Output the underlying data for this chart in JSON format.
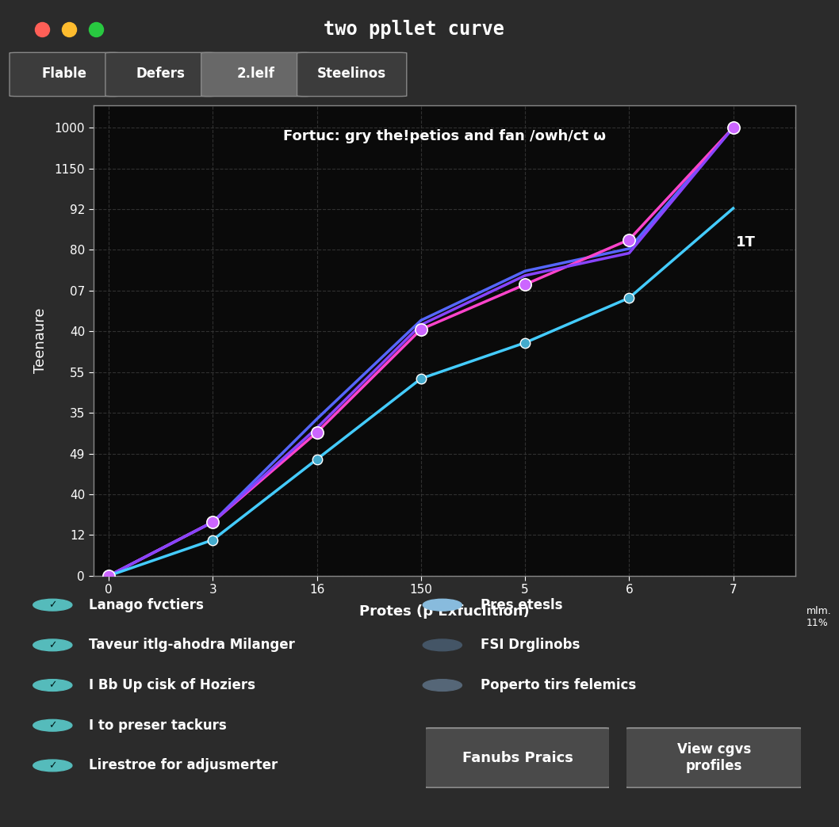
{
  "title": "two ppllet curve",
  "tab_labels": [
    "Flable",
    "Defers",
    "2.lelf",
    "Steelinos"
  ],
  "active_tab": 2,
  "chart_title": "Fortuc: gry the!petios and fan /owh/ct ω",
  "xlabel": "Protes (p Exfuclition)",
  "ylabel": "Teenaure",
  "x_tick_labels": [
    "0",
    "3",
    "16",
    "150",
    "5",
    "6",
    "7"
  ],
  "y_tick_labels": [
    "0",
    "12",
    "40",
    "49",
    "35",
    "55",
    "40",
    "07",
    "80",
    "92",
    "1150",
    "1000"
  ],
  "extra_x_label": "mlm.\n11%",
  "extra_y_label": "1T",
  "plot_bg_color": "#0a0a0a",
  "grid_color": "#3a3a3a",
  "text_color": "#ffffff",
  "line1_color": "#ff44cc",
  "line2_color": "#8844ff",
  "line3_color": "#44ccff",
  "line4_color": "#5566ff",
  "line1_y": [
    0,
    12,
    32,
    55,
    65,
    75,
    100
  ],
  "line2_y": [
    0,
    12,
    33,
    56,
    67,
    72,
    100
  ],
  "line3_y": [
    0,
    8,
    26,
    44,
    52,
    62,
    82
  ],
  "line4_y": [
    0,
    12,
    35,
    57,
    68,
    73,
    100
  ],
  "checkboxes_left": [
    "Lanago fvctiers",
    "Taveur itlg-ahodra Milanger",
    "I Bb Up cisk of Hoziers",
    "I to preser tackurs",
    "Lirestroe for adjusmerter"
  ],
  "checkboxes_right": [
    "Pres etesls",
    "FSI Drglinobs",
    "Poperto tirs felemics"
  ],
  "btn1": "Fanubs Praics",
  "btn2": "View cgvs\nprofiles",
  "window_bg": "#2b2b2b",
  "titlebar_bg": "#383838"
}
